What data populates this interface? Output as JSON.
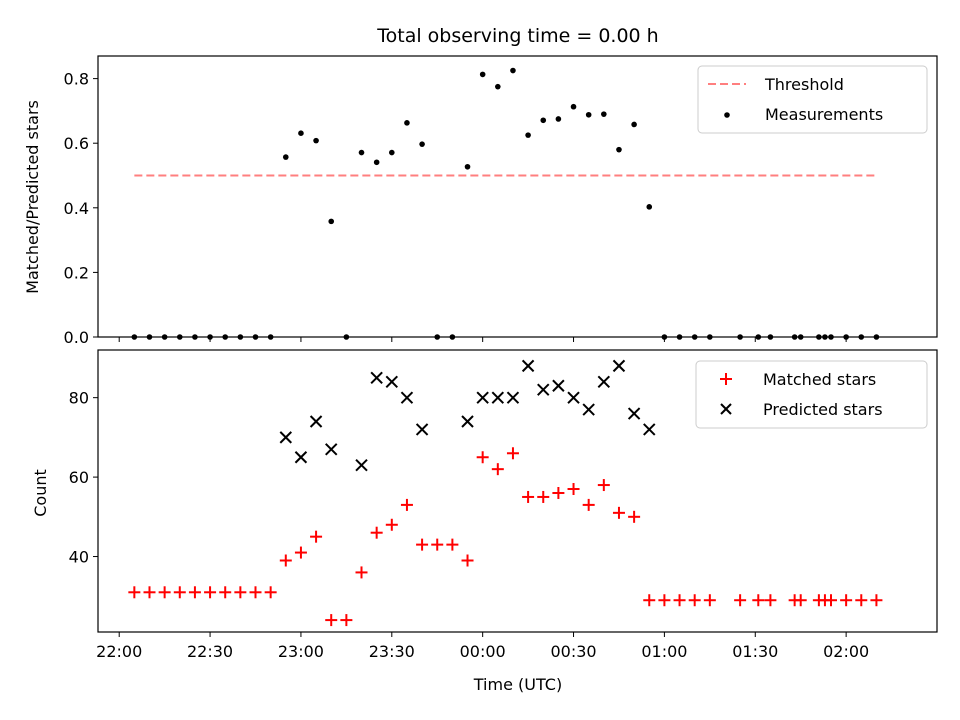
{
  "chart_data": [
    {
      "type": "scatter",
      "title": "Total observing time = 0.00 h",
      "xlabel": "",
      "ylabel": "Matched/Predicted stars",
      "ylim": [
        0,
        0.87
      ],
      "yticks": [
        0.0,
        0.2,
        0.4,
        0.6,
        0.8
      ],
      "ytick_labels": [
        "0.0",
        "0.2",
        "0.4",
        "0.6",
        "0.8"
      ],
      "legend_placement": "top-right",
      "legend": [
        "Threshold",
        "Measurements"
      ],
      "colors": {
        "threshold": "#ff7f7f",
        "measurements": "#000000"
      },
      "threshold": {
        "name": "Threshold",
        "value": 0.5,
        "x_start": "22:05",
        "x_end": "02:10"
      },
      "series": [
        {
          "name": "Measurements",
          "points": [
            [
              "22:05",
              0.0
            ],
            [
              "22:10",
              0.0
            ],
            [
              "22:15",
              0.0
            ],
            [
              "22:20",
              0.0
            ],
            [
              "22:25",
              0.0
            ],
            [
              "22:30",
              0.0
            ],
            [
              "22:35",
              0.0
            ],
            [
              "22:40",
              0.0
            ],
            [
              "22:45",
              0.0
            ],
            [
              "22:50",
              0.0
            ],
            [
              "22:55",
              0.557
            ],
            [
              "23:00",
              0.631
            ],
            [
              "23:05",
              0.608
            ],
            [
              "23:10",
              0.358
            ],
            [
              "23:15",
              0.0
            ],
            [
              "23:20",
              0.571
            ],
            [
              "23:25",
              0.541
            ],
            [
              "23:30",
              0.571
            ],
            [
              "23:35",
              0.663
            ],
            [
              "23:40",
              0.597
            ],
            [
              "23:45",
              0.0
            ],
            [
              "23:50",
              0.0
            ],
            [
              "23:55",
              0.527
            ],
            [
              "00:00",
              0.813
            ],
            [
              "00:05",
              0.775
            ],
            [
              "00:10",
              0.825
            ],
            [
              "00:15",
              0.625
            ],
            [
              "00:20",
              0.671
            ],
            [
              "00:25",
              0.675
            ],
            [
              "00:30",
              0.713
            ],
            [
              "00:35",
              0.688
            ],
            [
              "00:40",
              0.69
            ],
            [
              "00:45",
              0.58
            ],
            [
              "00:50",
              0.658
            ],
            [
              "00:55",
              0.403
            ],
            [
              "01:00",
              0.0
            ],
            [
              "01:05",
              0.0
            ],
            [
              "01:10",
              0.0
            ],
            [
              "01:15",
              0.0
            ],
            [
              "01:25",
              0.0
            ],
            [
              "01:31",
              0.0
            ],
            [
              "01:35",
              0.0
            ],
            [
              "01:43",
              0.0
            ],
            [
              "01:45",
              0.0
            ],
            [
              "01:51",
              0.0
            ],
            [
              "01:53",
              0.0
            ],
            [
              "01:55",
              0.0
            ],
            [
              "02:00",
              0.0
            ],
            [
              "02:05",
              0.0
            ],
            [
              "02:10",
              0.0
            ]
          ]
        }
      ]
    },
    {
      "type": "scatter",
      "title": "",
      "xlabel": "Time (UTC)",
      "ylabel": "Count",
      "xlim": [
        "21:53",
        "02:30"
      ],
      "ylim": [
        21,
        92
      ],
      "yticks": [
        40,
        60,
        80
      ],
      "ytick_labels": [
        "40",
        "60",
        "80"
      ],
      "xticks": [
        "22:00",
        "22:30",
        "23:00",
        "23:30",
        "00:00",
        "00:30",
        "01:00",
        "01:30",
        "02:00"
      ],
      "legend_placement": "top-right",
      "legend": [
        "Matched stars",
        "Predicted stars"
      ],
      "colors": {
        "matched": "#ff0000",
        "predicted": "#000000"
      },
      "series": [
        {
          "name": "Matched stars",
          "marker": "+",
          "points": [
            [
              "22:05",
              31
            ],
            [
              "22:10",
              31
            ],
            [
              "22:15",
              31
            ],
            [
              "22:20",
              31
            ],
            [
              "22:25",
              31
            ],
            [
              "22:30",
              31
            ],
            [
              "22:35",
              31
            ],
            [
              "22:40",
              31
            ],
            [
              "22:45",
              31
            ],
            [
              "22:50",
              31
            ],
            [
              "22:55",
              39
            ],
            [
              "23:00",
              41
            ],
            [
              "23:05",
              45
            ],
            [
              "23:10",
              24
            ],
            [
              "23:15",
              24
            ],
            [
              "23:20",
              36
            ],
            [
              "23:25",
              46
            ],
            [
              "23:30",
              48
            ],
            [
              "23:35",
              53
            ],
            [
              "23:40",
              43
            ],
            [
              "23:45",
              43
            ],
            [
              "23:50",
              43
            ],
            [
              "23:55",
              39
            ],
            [
              "00:00",
              65
            ],
            [
              "00:05",
              62
            ],
            [
              "00:10",
              66
            ],
            [
              "00:15",
              55
            ],
            [
              "00:20",
              55
            ],
            [
              "00:25",
              56
            ],
            [
              "00:30",
              57
            ],
            [
              "00:35",
              53
            ],
            [
              "00:40",
              58
            ],
            [
              "00:45",
              51
            ],
            [
              "00:50",
              50
            ],
            [
              "00:55",
              29
            ],
            [
              "01:00",
              29
            ],
            [
              "01:05",
              29
            ],
            [
              "01:10",
              29
            ],
            [
              "01:15",
              29
            ],
            [
              "01:25",
              29
            ],
            [
              "01:31",
              29
            ],
            [
              "01:35",
              29
            ],
            [
              "01:43",
              29
            ],
            [
              "01:45",
              29
            ],
            [
              "01:51",
              29
            ],
            [
              "01:53",
              29
            ],
            [
              "01:55",
              29
            ],
            [
              "02:00",
              29
            ],
            [
              "02:05",
              29
            ],
            [
              "02:10",
              29
            ]
          ]
        },
        {
          "name": "Predicted stars",
          "marker": "x",
          "points": [
            [
              "22:55",
              70
            ],
            [
              "23:00",
              65
            ],
            [
              "23:05",
              74
            ],
            [
              "23:10",
              67
            ],
            [
              "23:20",
              63
            ],
            [
              "23:25",
              85
            ],
            [
              "23:30",
              84
            ],
            [
              "23:35",
              80
            ],
            [
              "23:40",
              72
            ],
            [
              "23:55",
              74
            ],
            [
              "00:00",
              80
            ],
            [
              "00:05",
              80
            ],
            [
              "00:10",
              80
            ],
            [
              "00:15",
              88
            ],
            [
              "00:20",
              82
            ],
            [
              "00:25",
              83
            ],
            [
              "00:30",
              80
            ],
            [
              "00:35",
              77
            ],
            [
              "00:40",
              84
            ],
            [
              "00:45",
              88
            ],
            [
              "00:50",
              76
            ],
            [
              "00:55",
              72
            ]
          ]
        }
      ]
    }
  ]
}
